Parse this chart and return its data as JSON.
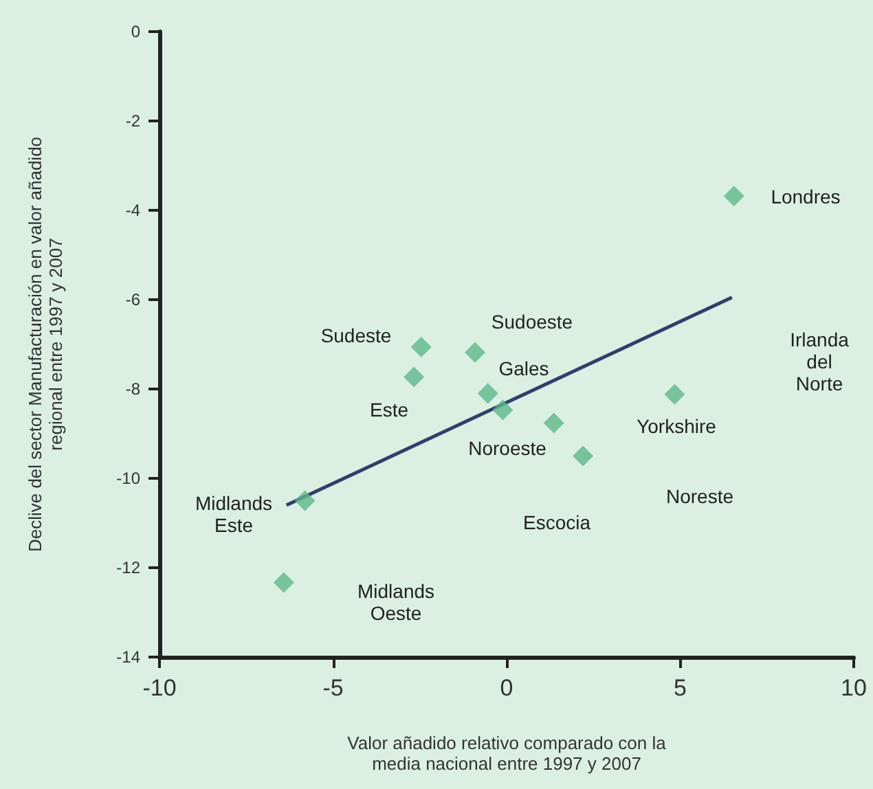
{
  "chart_data": {
    "type": "scatter",
    "xlabel": "Valor añadido relativo comparado con la\nmedia nacional entre 1997 y 2007",
    "ylabel": "Declive del sector Manufacturación en valor añadido\nregional entre 1997 y 2007",
    "xlim": [
      -10,
      10
    ],
    "xticks": [
      -10,
      -5,
      0,
      5,
      10
    ],
    "ylim": [
      -14,
      0
    ],
    "yticks": [
      -14,
      -12,
      -10,
      -8,
      -6,
      -4,
      -2,
      0
    ],
    "grid": false,
    "marker": "diamond",
    "series": [
      {
        "color": "#5cb88a",
        "x": [
          6.55,
          -2.46,
          -0.91,
          -2.67,
          -0.54,
          4.84,
          -0.11,
          1.36,
          2.2,
          -5.81,
          -6.42
        ],
        "values": [
          -3.68,
          -7.06,
          -7.18,
          -7.73,
          -8.1,
          -8.12,
          -8.47,
          -8.76,
          -9.5,
          -10.5,
          -12.33
        ]
      },
      {
        "type": "line",
        "color": "#2f3f6b",
        "line_style": "solid",
        "marker": "none",
        "x": [
          -6.34,
          6.49
        ],
        "values": [
          -10.6,
          -5.95
        ]
      }
    ],
    "annotations": [
      "Londres",
      "Sudeste",
      "Sudoeste",
      "Gales",
      "Irlanda\ndel\nNorte",
      "Este",
      "Noroeste",
      "Yorkshire",
      "Noreste",
      "Escocia",
      "Midlands\nEste",
      "Midlands\nOeste"
    ]
  }
}
